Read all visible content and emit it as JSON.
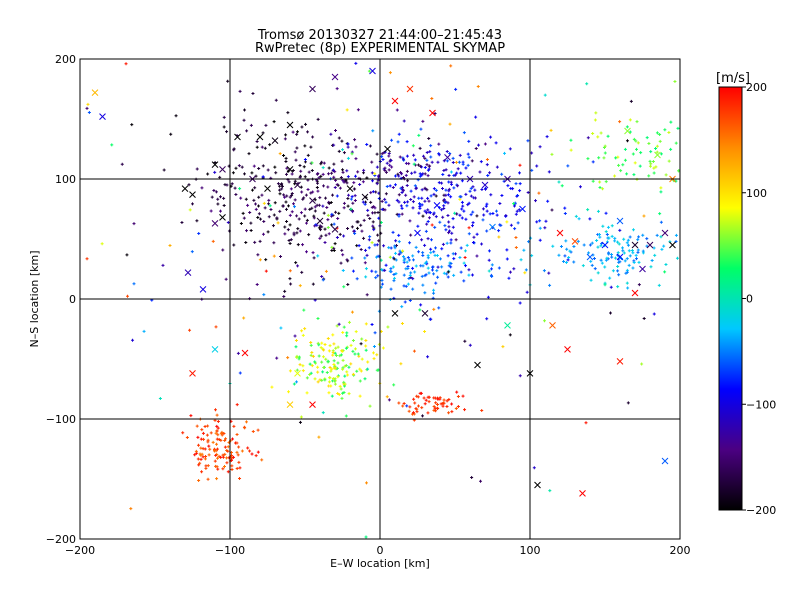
{
  "chart_data": {
    "type": "scatter",
    "title_line1": "Tromsø 20130327 21:44:00–21:45:43",
    "title_line2": "RwPretec (8p) EXPERIMENTAL SKYMAP",
    "xlabel": "E–W location [km]",
    "ylabel": "N–S location [km]",
    "xlim": [
      -200,
      200
    ],
    "ylim": [
      -200,
      200
    ],
    "xticks": [
      -200,
      -100,
      0,
      100,
      200
    ],
    "yticks": [
      -200,
      -100,
      0,
      100,
      200
    ],
    "grid": true,
    "colorbar": {
      "label": "[m/s]",
      "min": -200,
      "max": 200,
      "ticks": [
        -200,
        -100,
        0,
        100,
        200
      ],
      "colors": [
        "#000000",
        "#4b0082",
        "#0000ff",
        "#00c8ff",
        "#00ff66",
        "#ffff00",
        "#ff8c00",
        "#ff0000"
      ]
    },
    "points": [
      {
        "x": -190,
        "y": 172,
        "v": 120,
        "m": "x"
      },
      {
        "x": -185,
        "y": 152,
        "v": -100,
        "m": "x"
      },
      {
        "x": -130,
        "y": 92,
        "v": -200,
        "m": "x"
      },
      {
        "x": -125,
        "y": 87,
        "v": -200,
        "m": "x"
      },
      {
        "x": -110,
        "y": 112,
        "v": -200,
        "m": "x"
      },
      {
        "x": -105,
        "y": 108,
        "v": -160,
        "m": "x"
      },
      {
        "x": -110,
        "y": 63,
        "v": -150,
        "m": "x"
      },
      {
        "x": -105,
        "y": 68,
        "v": -200,
        "m": "x"
      },
      {
        "x": -128,
        "y": 22,
        "v": -120,
        "m": "x"
      },
      {
        "x": -118,
        "y": 8,
        "v": -100,
        "m": "x"
      },
      {
        "x": -95,
        "y": 135,
        "v": -200,
        "m": "x"
      },
      {
        "x": -80,
        "y": 135,
        "v": -200,
        "m": "x"
      },
      {
        "x": -70,
        "y": 132,
        "v": -190,
        "m": "x"
      },
      {
        "x": -60,
        "y": 108,
        "v": -200,
        "m": "x"
      },
      {
        "x": -55,
        "y": 95,
        "v": -170,
        "m": "x"
      },
      {
        "x": -75,
        "y": 92,
        "v": -200,
        "m": "x"
      },
      {
        "x": -85,
        "y": 100,
        "v": -160,
        "m": "x"
      },
      {
        "x": -45,
        "y": 82,
        "v": -170,
        "m": "x"
      },
      {
        "x": -40,
        "y": 65,
        "v": -180,
        "m": "x"
      },
      {
        "x": -30,
        "y": 58,
        "v": -170,
        "m": "x"
      },
      {
        "x": -20,
        "y": 92,
        "v": -200,
        "m": "x"
      },
      {
        "x": -10,
        "y": 85,
        "v": -190,
        "m": "x"
      },
      {
        "x": -60,
        "y": 145,
        "v": -200,
        "m": "x"
      },
      {
        "x": -45,
        "y": 175,
        "v": -160,
        "m": "x"
      },
      {
        "x": -30,
        "y": 185,
        "v": -140,
        "m": "x"
      },
      {
        "x": -5,
        "y": 190,
        "v": -100,
        "m": "x"
      },
      {
        "x": 5,
        "y": 125,
        "v": -200,
        "m": "x"
      },
      {
        "x": 10,
        "y": 165,
        "v": 200,
        "m": "x"
      },
      {
        "x": 20,
        "y": 175,
        "v": 180,
        "m": "x"
      },
      {
        "x": 35,
        "y": 155,
        "v": 200,
        "m": "x"
      },
      {
        "x": 45,
        "y": 118,
        "v": -130,
        "m": "x"
      },
      {
        "x": 60,
        "y": 100,
        "v": -120,
        "m": "x"
      },
      {
        "x": 70,
        "y": 95,
        "v": -110,
        "m": "x"
      },
      {
        "x": 85,
        "y": 100,
        "v": -130,
        "m": "x"
      },
      {
        "x": 75,
        "y": 60,
        "v": -50,
        "m": "x"
      },
      {
        "x": 95,
        "y": 75,
        "v": -80,
        "m": "x"
      },
      {
        "x": 25,
        "y": 55,
        "v": -90,
        "m": "x"
      },
      {
        "x": 38,
        "y": 78,
        "v": -90,
        "m": "x"
      },
      {
        "x": 120,
        "y": 55,
        "v": 200,
        "m": "x"
      },
      {
        "x": 130,
        "y": 48,
        "v": 170,
        "m": "x"
      },
      {
        "x": 140,
        "y": 35,
        "v": -60,
        "m": "x"
      },
      {
        "x": 150,
        "y": 45,
        "v": -80,
        "m": "x"
      },
      {
        "x": 160,
        "y": 35,
        "v": -90,
        "m": "x"
      },
      {
        "x": 170,
        "y": 45,
        "v": -180,
        "m": "x"
      },
      {
        "x": 180,
        "y": 45,
        "v": -160,
        "m": "x"
      },
      {
        "x": 190,
        "y": 55,
        "v": -150,
        "m": "x"
      },
      {
        "x": 195,
        "y": 45,
        "v": -200,
        "m": "x"
      },
      {
        "x": 175,
        "y": 25,
        "v": -130,
        "m": "x"
      },
      {
        "x": 160,
        "y": 65,
        "v": -60,
        "m": "x"
      },
      {
        "x": 185,
        "y": 120,
        "v": 60,
        "m": "x"
      },
      {
        "x": 165,
        "y": 140,
        "v": 60,
        "m": "x"
      },
      {
        "x": 10,
        "y": -12,
        "v": -200,
        "m": "x"
      },
      {
        "x": 30,
        "y": -12,
        "v": -180,
        "m": "x"
      },
      {
        "x": 85,
        "y": -22,
        "v": 10,
        "m": "x"
      },
      {
        "x": 115,
        "y": -22,
        "v": 160,
        "m": "x"
      },
      {
        "x": 125,
        "y": -42,
        "v": 200,
        "m": "x"
      },
      {
        "x": 65,
        "y": -55,
        "v": -200,
        "m": "x"
      },
      {
        "x": 100,
        "y": -62,
        "v": -200,
        "m": "x"
      },
      {
        "x": 160,
        "y": -52,
        "v": 190,
        "m": "x"
      },
      {
        "x": -110,
        "y": -42,
        "v": -20,
        "m": "x"
      },
      {
        "x": -125,
        "y": -62,
        "v": 190,
        "m": "x"
      },
      {
        "x": -90,
        "y": -45,
        "v": 200,
        "m": "x"
      },
      {
        "x": -55,
        "y": -62,
        "v": 80,
        "m": "x"
      },
      {
        "x": -60,
        "y": -88,
        "v": 110,
        "m": "x"
      },
      {
        "x": -45,
        "y": -88,
        "v": 200,
        "m": "x"
      },
      {
        "x": 105,
        "y": -155,
        "v": -200,
        "m": "x"
      },
      {
        "x": 135,
        "y": -162,
        "v": 200,
        "m": "x"
      },
      {
        "x": 190,
        "y": -135,
        "v": -60,
        "m": "x"
      },
      {
        "x": 170,
        "y": 5,
        "v": 200,
        "m": "x"
      },
      {
        "x": 195,
        "y": 100,
        "v": 150,
        "m": "x"
      }
    ],
    "clusters": [
      {
        "cx": -50,
        "cy": 80,
        "sx": 35,
        "sy": 28,
        "n": 320,
        "vmin": -200,
        "vmax": -140
      },
      {
        "cx": -80,
        "cy": 120,
        "sx": 30,
        "sy": 25,
        "n": 60,
        "vmin": -200,
        "vmax": -160
      },
      {
        "cx": 40,
        "cy": 80,
        "sx": 40,
        "sy": 30,
        "n": 330,
        "vmin": -120,
        "vmax": -60
      },
      {
        "cx": 10,
        "cy": 105,
        "sx": 25,
        "sy": 20,
        "n": 90,
        "vmin": -160,
        "vmax": -110
      },
      {
        "cx": 25,
        "cy": 25,
        "sx": 20,
        "sy": 12,
        "n": 110,
        "vmin": -70,
        "vmax": -20
      },
      {
        "cx": 160,
        "cy": 40,
        "sx": 25,
        "sy": 12,
        "n": 140,
        "vmin": -60,
        "vmax": -10
      },
      {
        "cx": 170,
        "cy": 120,
        "sx": 20,
        "sy": 18,
        "n": 80,
        "vmin": 20,
        "vmax": 80
      },
      {
        "cx": -30,
        "cy": -55,
        "sx": 14,
        "sy": 16,
        "n": 170,
        "vmin": 20,
        "vmax": 110
      },
      {
        "cx": -105,
        "cy": -125,
        "sx": 10,
        "sy": 13,
        "n": 130,
        "vmin": 150,
        "vmax": 200
      },
      {
        "cx": 35,
        "cy": -88,
        "sx": 12,
        "sy": 6,
        "n": 60,
        "vmin": 160,
        "vmax": 200
      },
      {
        "cx": 0,
        "cy": 40,
        "sx": 110,
        "sy": 90,
        "n": 220,
        "vmin": -200,
        "vmax": 200
      }
    ]
  }
}
